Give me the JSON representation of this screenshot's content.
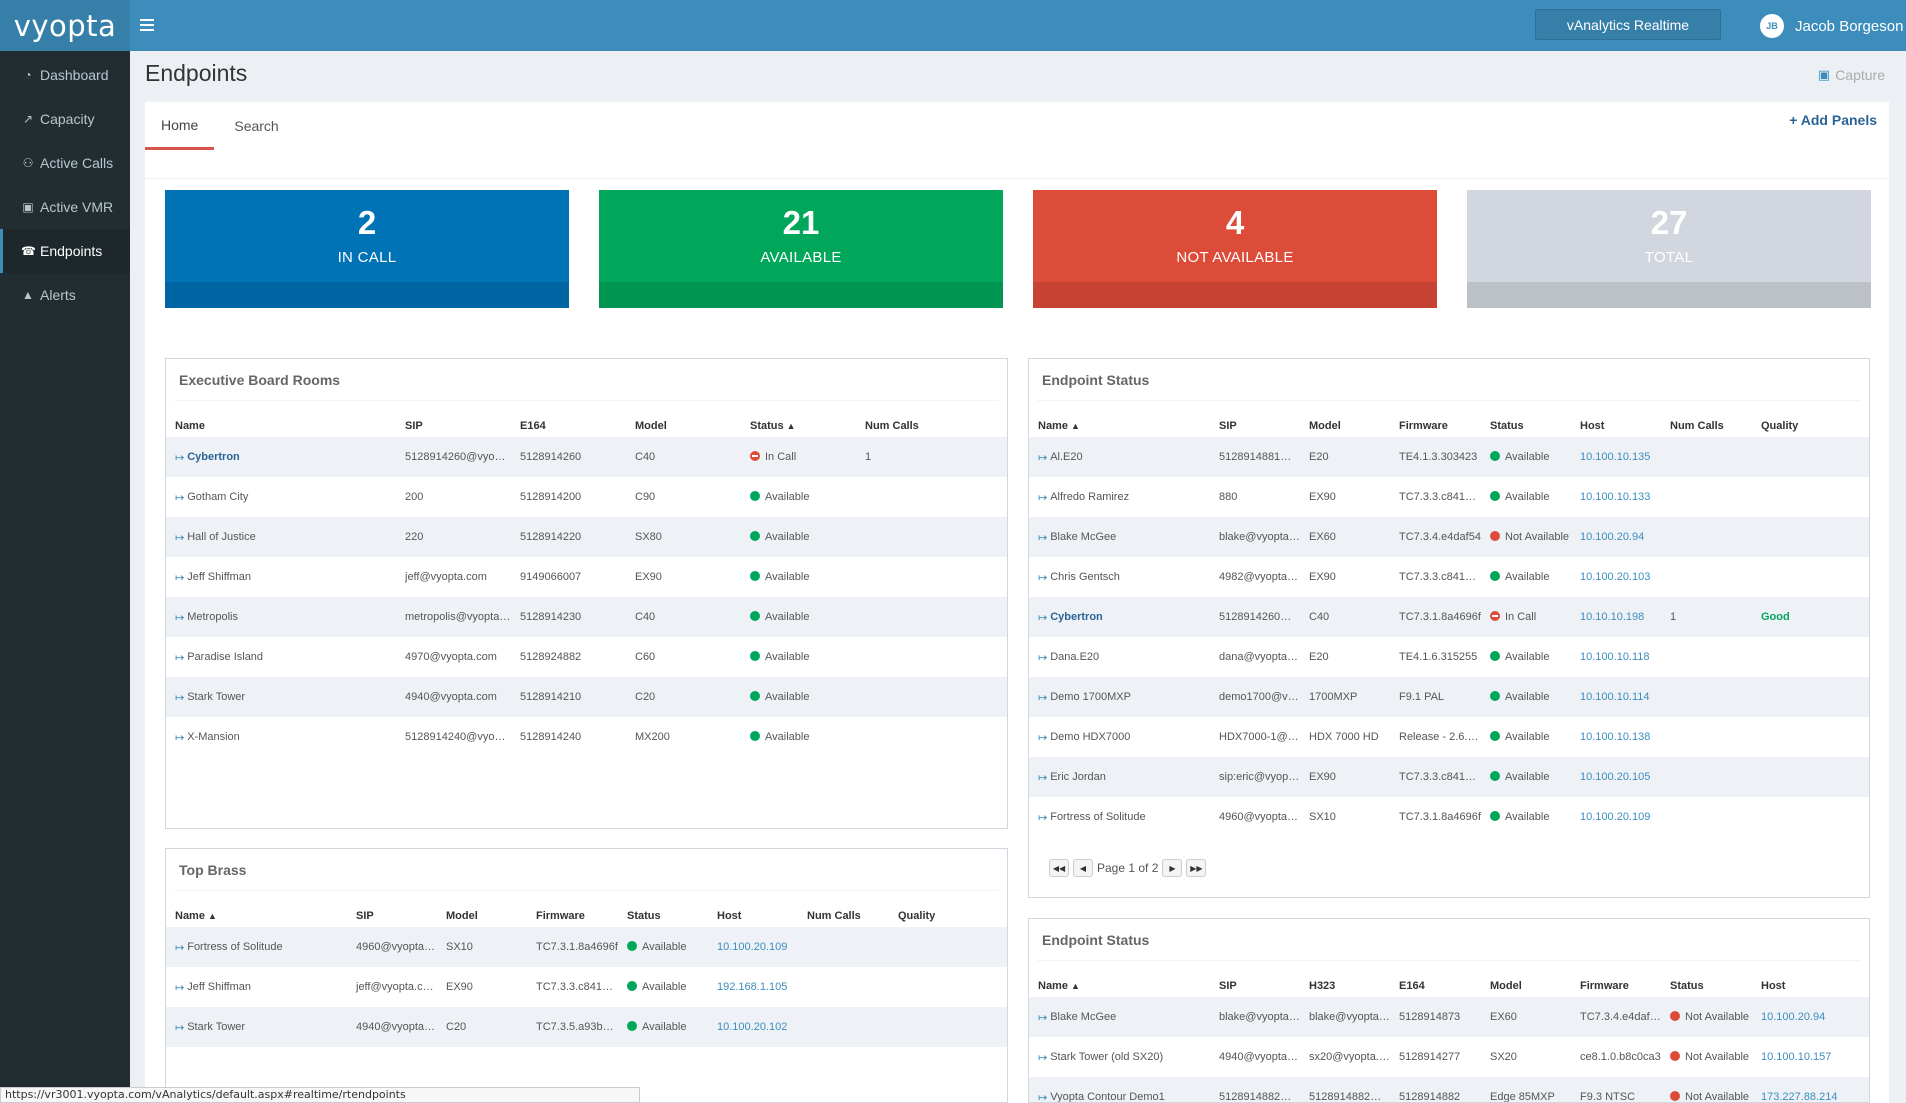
{
  "app": {
    "logo": "vyopta",
    "realtime_button": "vAnalytics Realtime",
    "user_initials": "JB",
    "user_name": "Jacob Borgeson"
  },
  "sidebar": {
    "items": [
      {
        "label": "Dashboard",
        "icon": "dashboard-icon"
      },
      {
        "label": "Capacity",
        "icon": "chart-icon"
      },
      {
        "label": "Active Calls",
        "icon": "people-icon"
      },
      {
        "label": "Active VMR",
        "icon": "vmr-icon"
      },
      {
        "label": "Endpoints",
        "icon": "phone-icon",
        "active": true
      },
      {
        "label": "Alerts",
        "icon": "warning-icon"
      }
    ]
  },
  "page": {
    "title": "Endpoints",
    "capture_label": "Capture",
    "tabs": [
      {
        "label": "Home",
        "active": true
      },
      {
        "label": "Search"
      }
    ],
    "add_panels": "+ Add Panels"
  },
  "tiles": [
    {
      "value": "2",
      "label": "IN CALL",
      "color": "#0073b7"
    },
    {
      "value": "21",
      "label": "AVAILABLE",
      "color": "#00a65a"
    },
    {
      "value": "4",
      "label": "NOT AVAILABLE",
      "color": "#dd4b39"
    },
    {
      "value": "27",
      "label": "TOTAL",
      "color": "#d2d6de"
    }
  ],
  "executive": {
    "title": "Executive Board Rooms",
    "columns": [
      "Name",
      "SIP",
      "E164",
      "Model",
      "Status",
      "Num Calls"
    ],
    "rows": [
      {
        "name": "Cybertron",
        "sip": "5128914260@vyopta...",
        "e164": "5128914260",
        "model": "C40",
        "status": "In Call",
        "num_calls": "1"
      },
      {
        "name": "Gotham City",
        "sip": "200",
        "e164": "5128914200",
        "model": "C90",
        "status": "Available",
        "num_calls": ""
      },
      {
        "name": "Hall of Justice",
        "sip": "220",
        "e164": "5128914220",
        "model": "SX80",
        "status": "Available",
        "num_calls": ""
      },
      {
        "name": "Jeff Shiffman",
        "sip": "jeff@vyopta.com",
        "e164": "9149066007",
        "model": "EX90",
        "status": "Available",
        "num_calls": ""
      },
      {
        "name": "Metropolis",
        "sip": "metropolis@vyopta.c...",
        "e164": "5128914230",
        "model": "C40",
        "status": "Available",
        "num_calls": ""
      },
      {
        "name": "Paradise Island",
        "sip": "4970@vyopta.com",
        "e164": "5128924882",
        "model": "C60",
        "status": "Available",
        "num_calls": ""
      },
      {
        "name": "Stark Tower",
        "sip": "4940@vyopta.com",
        "e164": "5128914210",
        "model": "C20",
        "status": "Available",
        "num_calls": ""
      },
      {
        "name": "X-Mansion",
        "sip": "5128914240@vyopta...",
        "e164": "5128914240",
        "model": "MX200",
        "status": "Available",
        "num_calls": ""
      }
    ]
  },
  "topbrass": {
    "title": "Top Brass",
    "columns": [
      "Name",
      "SIP",
      "Model",
      "Firmware",
      "Status",
      "Host",
      "Num Calls",
      "Quality"
    ],
    "rows": [
      {
        "name": "Fortress of Solitude",
        "sip": "4960@vyopta.co...",
        "model": "SX10",
        "firmware": "TC7.3.1.8a4696f",
        "status": "Available",
        "host": "10.100.20.109",
        "num_calls": "",
        "quality": ""
      },
      {
        "name": "Jeff Shiffman",
        "sip": "jeff@vyopta.com",
        "model": "EX90",
        "firmware": "TC7.3.3.c84180a",
        "status": "Available",
        "host": "192.168.1.105",
        "num_calls": "",
        "quality": ""
      },
      {
        "name": "Stark Tower",
        "sip": "4940@vyopta.co...",
        "model": "C20",
        "firmware": "TC7.3.5.a93bdb1",
        "status": "Available",
        "host": "10.100.20.102",
        "num_calls": "",
        "quality": ""
      }
    ]
  },
  "endpoint_status": {
    "title": "Endpoint Status",
    "columns": [
      "Name",
      "SIP",
      "Model",
      "Firmware",
      "Status",
      "Host",
      "Num Calls",
      "Quality"
    ],
    "rows": [
      {
        "name": "Al.E20",
        "sip": "5128914881@vy...",
        "model": "E20",
        "firmware": "TE4.1.3.303423",
        "status": "Available",
        "host": "10.100.10.135",
        "num_calls": "",
        "quality": ""
      },
      {
        "name": "Alfredo Ramirez",
        "sip": "880",
        "model": "EX90",
        "firmware": "TC7.3.3.c84180a",
        "status": "Available",
        "host": "10.100.10.133",
        "num_calls": "",
        "quality": ""
      },
      {
        "name": "Blake McGee",
        "sip": "blake@vyopta.co...",
        "model": "EX60",
        "firmware": "TC7.3.4.e4daf54",
        "status": "Not Available",
        "host": "10.100.20.94",
        "num_calls": "",
        "quality": ""
      },
      {
        "name": "Chris Gentsch",
        "sip": "4982@vyopta.co...",
        "model": "EX90",
        "firmware": "TC7.3.3.c84180a",
        "status": "Available",
        "host": "10.100.20.103",
        "num_calls": "",
        "quality": ""
      },
      {
        "name": "Cybertron",
        "sip": "5128914260@vy...",
        "model": "C40",
        "firmware": "TC7.3.1.8a4696f",
        "status": "In Call",
        "host": "10.10.10.198",
        "num_calls": "1",
        "quality": "Good"
      },
      {
        "name": "Dana.E20",
        "sip": "dana@vyopta.co...",
        "model": "E20",
        "firmware": "TE4.1.6.315255",
        "status": "Available",
        "host": "10.100.10.118",
        "num_calls": "",
        "quality": ""
      },
      {
        "name": "Demo 1700MXP",
        "sip": "demo1700@vyo...",
        "model": "1700MXP",
        "firmware": "F9.1 PAL",
        "status": "Available",
        "host": "10.100.10.114",
        "num_calls": "",
        "quality": ""
      },
      {
        "name": "Demo HDX7000",
        "sip": "HDX7000-1@vyo...",
        "model": "HDX 7000 HD",
        "firmware": "Release - 2.6.1.3...",
        "status": "Available",
        "host": "10.100.10.138",
        "num_calls": "",
        "quality": ""
      },
      {
        "name": "Eric Jordan",
        "sip": "sip:eric@vyopta....",
        "model": "EX90",
        "firmware": "TC7.3.3.c84180a",
        "status": "Available",
        "host": "10.100.20.105",
        "num_calls": "",
        "quality": ""
      },
      {
        "name": "Fortress of Solitude",
        "sip": "4960@vyopta.co...",
        "model": "SX10",
        "firmware": "TC7.3.1.8a4696f",
        "status": "Available",
        "host": "10.100.20.109",
        "num_calls": "",
        "quality": ""
      }
    ],
    "pager_text": "Page 1 of 2"
  },
  "endpoint_status2": {
    "title": "Endpoint Status",
    "columns": [
      "Name",
      "SIP",
      "H323",
      "E164",
      "Model",
      "Firmware",
      "Status",
      "Host"
    ],
    "rows": [
      {
        "name": "Blake McGee",
        "sip": "blake@vyopta.co...",
        "h323": "blake@vyopta.co...",
        "e164": "5128914873",
        "model": "EX60",
        "firmware": "TC7.3.4.e4daf54",
        "status": "Not Available",
        "host": "10.100.20.94"
      },
      {
        "name": "Stark Tower (old SX20)",
        "sip": "4940@vyopta.co...",
        "h323": "sx20@vyopta.co...",
        "e164": "5128914277",
        "model": "SX20",
        "firmware": "ce8.1.0.b8c0ca3",
        "status": "Not Available",
        "host": "10.100.10.157"
      },
      {
        "name": "Vyopta Contour Demo1",
        "sip": "5128914882@vy...",
        "h323": "5128914882@vy...",
        "e164": "5128914882",
        "model": "Edge 85MXP",
        "firmware": "F9.3 NTSC",
        "status": "Not Available",
        "host": "173.227.88.214"
      }
    ]
  },
  "statusbar_url": "https://vr3001.vyopta.com/vAnalytics/default.aspx#realtime/rtendpoints"
}
